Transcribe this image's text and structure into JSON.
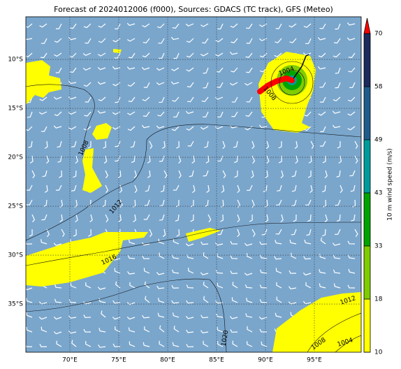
{
  "title": "Forecast of 2024012006 (f000), Sources: GDACS (TC track), GFS (Meteo)",
  "lat_ticks": [
    {
      "value": -10,
      "label": "10°S"
    },
    {
      "value": -15,
      "label": "15°S"
    },
    {
      "value": -20,
      "label": "20°S"
    },
    {
      "value": -25,
      "label": "25°S"
    },
    {
      "value": -30,
      "label": "30°S"
    },
    {
      "value": -35,
      "label": "35°S"
    }
  ],
  "lon_ticks": [
    {
      "value": 70,
      "label": "70°E"
    },
    {
      "value": 75,
      "label": "75°E"
    },
    {
      "value": 80,
      "label": "80°E"
    },
    {
      "value": 85,
      "label": "85°E"
    },
    {
      "value": 90,
      "label": "90°E"
    },
    {
      "value": 95,
      "label": "95°E"
    }
  ],
  "isobars": [
    "1004",
    "1008",
    "1008",
    "1012",
    "1016",
    "1020",
    "1012",
    "1008",
    "1004"
  ],
  "colorbar": {
    "label": "10 m wind speed (m/s)",
    "ticks": [
      10,
      18,
      33,
      43,
      49,
      58,
      70
    ],
    "colors": [
      "#ffff00",
      "#80cc00",
      "#00a400",
      "#009c9c",
      "#1f5c8c",
      "#1c2a5c"
    ],
    "extend_color": "#ff0000"
  }
}
